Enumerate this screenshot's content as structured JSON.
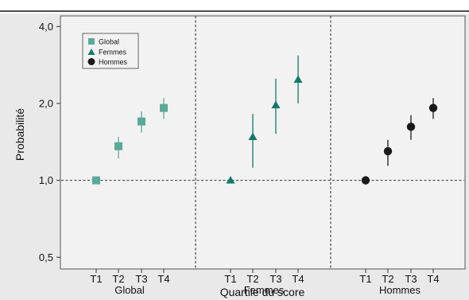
{
  "chart_data": {
    "type": "scatter",
    "ylabel": "Probabilité",
    "xlabel": "Quartile du score",
    "yscale": "log",
    "ylim": [
      0.45,
      4.4
    ],
    "yticks": [
      0.5,
      1.0,
      2.0,
      4.0
    ],
    "ytick_labels": [
      "0,5",
      "1,0",
      "2,0",
      "4,0"
    ],
    "reference_line": 1.0,
    "legend_position": "top-left",
    "colors": {
      "Global": "#5aaa98",
      "Femmes": "#127a68",
      "Hommes": "#1a1a1a"
    },
    "markers": {
      "Global": "square",
      "Femmes": "triangle",
      "Hommes": "circle"
    },
    "panels": [
      {
        "label": "Global",
        "categories": [
          "T1",
          "T2",
          "T3",
          "T4"
        ],
        "values": [
          1.0,
          1.36,
          1.7,
          1.92
        ],
        "lower": [
          1.0,
          1.22,
          1.54,
          1.74
        ],
        "upper": [
          1.0,
          1.48,
          1.86,
          2.1
        ]
      },
      {
        "label": "Femmes",
        "categories": [
          "T1",
          "T2",
          "T3",
          "T4"
        ],
        "values": [
          1.0,
          1.48,
          1.97,
          2.48
        ],
        "lower": [
          1.0,
          1.12,
          1.52,
          2.0
        ],
        "upper": [
          1.0,
          1.82,
          2.5,
          3.08
        ]
      },
      {
        "label": "Hommes",
        "categories": [
          "T1",
          "T2",
          "T3",
          "T4"
        ],
        "values": [
          1.0,
          1.3,
          1.62,
          1.92
        ],
        "lower": [
          1.0,
          1.14,
          1.44,
          1.74
        ],
        "upper": [
          1.0,
          1.44,
          1.8,
          2.1
        ]
      }
    ]
  },
  "legend": {
    "items": [
      "Global",
      "Femmes",
      "Hommes"
    ]
  }
}
